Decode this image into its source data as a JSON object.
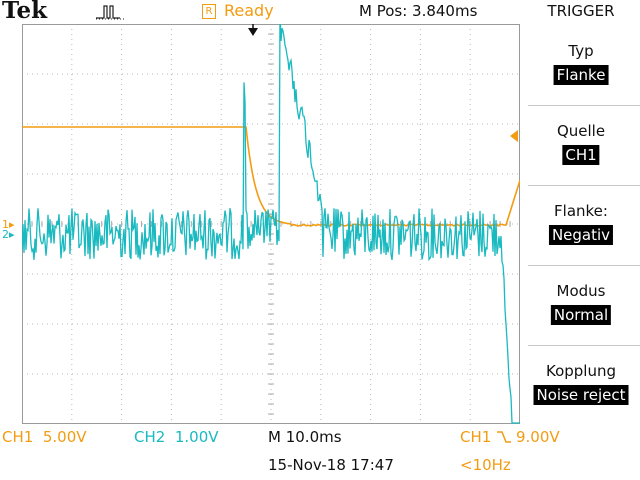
{
  "header": {
    "brand": "Tek",
    "acq_icon": "pulse-icon",
    "state_badge": "R",
    "state": "Ready",
    "m_pos": "M Pos: 3.840ms"
  },
  "menu": {
    "title": "TRIGGER",
    "items": [
      {
        "label": "Typ",
        "value": "Flanke"
      },
      {
        "label": "Quelle",
        "value": "CH1"
      },
      {
        "label": "Flanke:",
        "value": "Negativ"
      },
      {
        "label": "Modus",
        "value": "Normal"
      },
      {
        "label": "Kopplung",
        "value": "Noise reject"
      }
    ]
  },
  "status": {
    "ch1_scale": "CH1  5.00V",
    "ch2_scale": "CH2  1.00V",
    "timebase": "M 10.0ms",
    "trigger_source": "CH1",
    "trigger_slope_icon": "falling-edge-icon",
    "trigger_level": "9.00V",
    "datetime": "15-Nov-18 17:47",
    "frequency": "<10Hz"
  },
  "scope": {
    "ch1_marker": "1",
    "ch2_marker": "2",
    "colors": {
      "ch1": "#f39c12",
      "ch2": "#19b9c0",
      "grid": "#b4b4b4"
    }
  }
}
